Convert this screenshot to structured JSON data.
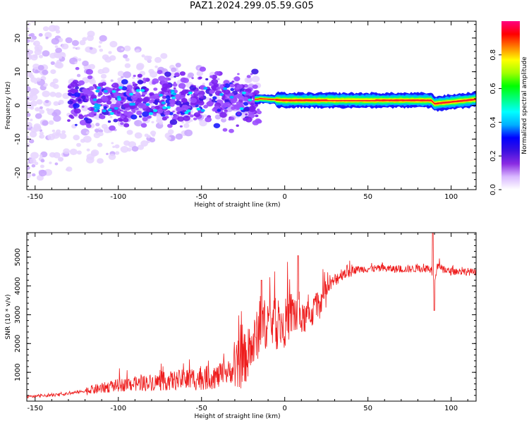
{
  "title": "PAZ1.2024.299.05.59.G05",
  "chart_data": [
    {
      "type": "heatmap",
      "xlabel": "Height of straight line (km)",
      "ylabel": "Frequency (Hz)",
      "xlim": [
        -155,
        115
      ],
      "ylim": [
        -25,
        25
      ],
      "xticks": [
        -150,
        -100,
        -50,
        0,
        50,
        100
      ],
      "yticks": [
        -20,
        -10,
        0,
        10,
        20
      ],
      "colorbar": {
        "label": "Normalized spectral amplitude",
        "range": [
          0,
          1
        ],
        "ticks": [
          "0.0",
          "0.2",
          "0.4",
          "0.6",
          "0.8"
        ],
        "colors": [
          "#ffffff",
          "#d9b8ff",
          "#8a2be2",
          "#3a10e0",
          "#0000ff",
          "#00b0ff",
          "#00ffff",
          "#00ff80",
          "#00ff00",
          "#a0ff00",
          "#ffff00",
          "#ff8000",
          "#ff0000",
          "#ff0080"
        ]
      },
      "features": {
        "line_frequency_hz": [
          {
            "x": -15,
            "f": 2.0
          },
          {
            "x": 0,
            "f": 1.5
          },
          {
            "x": 10,
            "f": 1.5
          },
          {
            "x": 30,
            "f": 1.5
          },
          {
            "x": 60,
            "f": 1.5
          },
          {
            "x": 88,
            "f": 1.5
          },
          {
            "x": 90,
            "f": 0.5
          },
          {
            "x": 115,
            "f": 1.8
          }
        ],
        "noise_region_x": [
          -155,
          -20
        ]
      }
    },
    {
      "type": "line",
      "xlabel": "Height of straight line (km)",
      "ylabel": "SNR (10 * v/v)",
      "xlim": [
        -155,
        115
      ],
      "ylim": [
        0,
        5850
      ],
      "xticks": [
        -150,
        -100,
        -50,
        0,
        50,
        100
      ],
      "yticks": [
        1000,
        2000,
        3000,
        4000,
        5000
      ],
      "color": "#ee1c1c",
      "x": [
        -155,
        -140,
        -130,
        -120,
        -110,
        -100,
        -90,
        -80,
        -70,
        -60,
        -50,
        -40,
        -30,
        -25,
        -20,
        -15,
        -10,
        -5,
        0,
        5,
        10,
        15,
        20,
        25,
        30,
        35,
        40,
        50,
        60,
        70,
        80,
        88,
        90,
        92,
        95,
        100,
        110,
        115
      ],
      "y": [
        150,
        200,
        260,
        350,
        450,
        550,
        600,
        650,
        700,
        750,
        800,
        850,
        1100,
        1400,
        1800,
        2500,
        2800,
        2600,
        2700,
        3100,
        2800,
        3000,
        3300,
        3800,
        4200,
        4450,
        4550,
        4600,
        4600,
        4580,
        4600,
        4600,
        4200,
        4750,
        4550,
        4500,
        4500,
        4450
      ]
    }
  ]
}
